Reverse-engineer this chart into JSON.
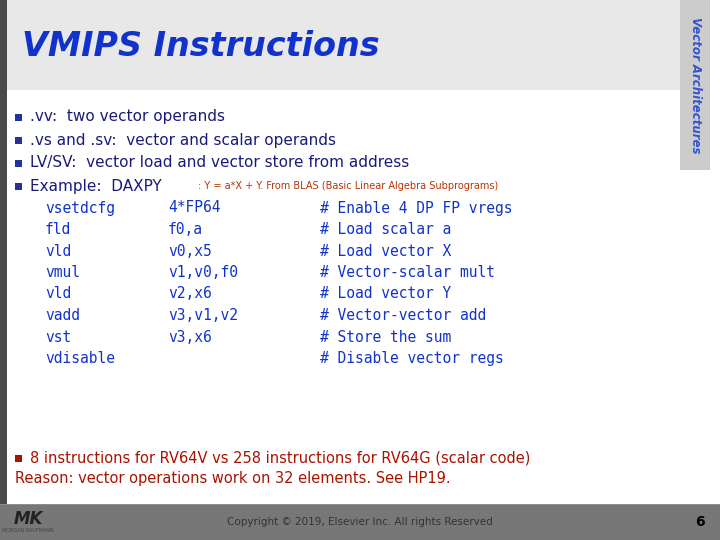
{
  "title": "VMIPS Instructions",
  "title_color": "#1133CC",
  "sidebar_text": "Vector Architectures",
  "sidebar_color": "#3355CC",
  "sidebar_bg": "#CCCCCC",
  "bg_color": "#FFFFFF",
  "left_bar_color": "#555555",
  "bullet_color": "#1A1A7A",
  "bullet_sq_color": "#223399",
  "bullet_points": [
    ".vv:  two vector operands",
    ".vs and .sv:  vector and scalar operands",
    "LV/SV:  vector load and vector store from address",
    "Example:  DAXPY"
  ],
  "example_subtitle": ": Y = a*X + Y. From BLAS (Basic Linear Algebra Subprograms)",
  "code_lines": [
    [
      "vsetdcfg",
      "4*FP64",
      "# Enable 4 DP FP vregs"
    ],
    [
      "fld",
      "f0,a",
      "# Load scalar a"
    ],
    [
      "vld",
      "v0,x5",
      "# Load vector X"
    ],
    [
      "vmul",
      "v1,v0,f0",
      "# Vector-scalar mult"
    ],
    [
      "vld",
      "v2,x6",
      "# Load vector Y"
    ],
    [
      "vadd",
      "v3,v1,v2",
      "# Vector-vector add"
    ],
    [
      "vst",
      "v3,x6",
      "# Store the sum"
    ],
    [
      "vdisable",
      "",
      "# Disable vector regs"
    ]
  ],
  "code_color": "#1133CC",
  "last_bullet_red": "8 instructions for RV64V vs 258 instructions for RV64G (scalar code)",
  "last_line_red": "Reason: vector operations work on 32 elements. See HP19.",
  "red_color": "#AA1100",
  "footer_bg": "#777777",
  "footer_text": "Copyright © 2019, Elsevier Inc. All rights Reserved",
  "footer_page": "6",
  "footer_text_color": "#333333",
  "footer_page_color": "#000000"
}
